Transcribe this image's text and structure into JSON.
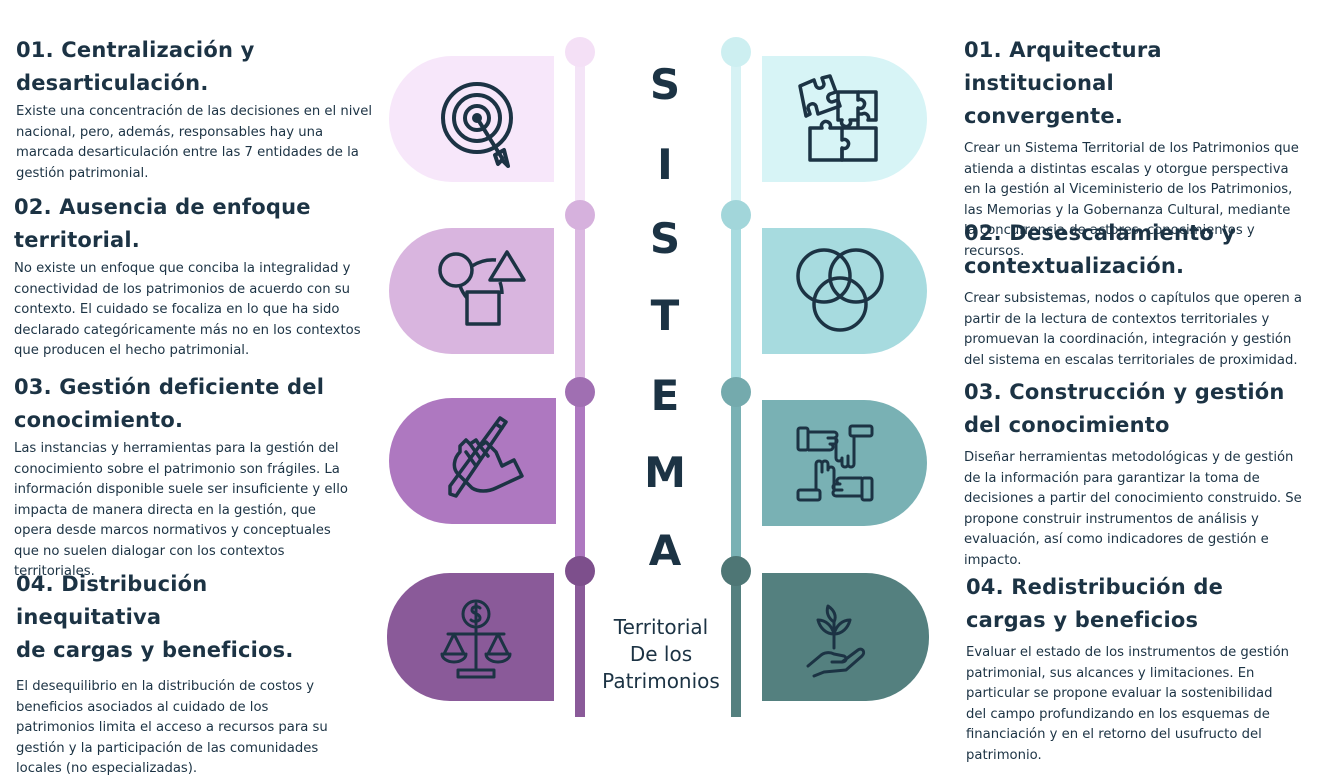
{
  "colors": {
    "text": "#1c3344",
    "left": [
      "#f7e7fa",
      "#d9b5df",
      "#ae78c0",
      "#8a5a99"
    ],
    "right": [
      "#d7f4f6",
      "#a7dbdf",
      "#79b1b4",
      "#54807f"
    ]
  },
  "center": {
    "letters": [
      "S",
      "I",
      "S",
      "T",
      "E",
      "M",
      "A"
    ],
    "subtitle": [
      "Territorial",
      "De los",
      "Patrimonios"
    ]
  },
  "left": [
    {
      "title_lines": [
        "01. Centralización y",
        "desarticulación."
      ],
      "text": "Existe una concentración de las decisiones en el nivel nacional, pero, además, responsables hay una marcada desarticulación entre las 7 entidades de la gestión patrimonial.",
      "icon": "target-icon"
    },
    {
      "title_lines": [
        "02. Ausencia de enfoque",
        "territorial."
      ],
      "text": "No existe un enfoque que conciba la integralidad y conectividad de los patrimonios de acuerdo con su contexto. El cuidado se focaliza en lo que ha sido declarado categóricamente más no en los contextos que producen el hecho patrimonial.",
      "icon": "shapes-icon"
    },
    {
      "title_lines": [
        "03. Gestión deficiente del",
        "conocimiento."
      ],
      "text": "Las instancias y herramientas para la gestión del conocimiento sobre el patrimonio son frágiles. La información disponible suele ser insuficiente y ello impacta de manera directa en la gestión, que opera desde marcos normativos y conceptuales que no suelen dialogar con los contextos territoriales.",
      "icon": "hand-pencil-icon"
    },
    {
      "title_lines": [
        "04. Distribución inequitativa",
        "de cargas y beneficios."
      ],
      "text": "El desequilibrio en la distribución de costos y beneficios asociados al cuidado de los patrimonios limita el acceso a recursos para su gestión y la participación de las comunidades locales (no especializadas).",
      "icon": "balance-scale-icon"
    }
  ],
  "right": [
    {
      "title_lines": [
        "01. Arquitectura institucional",
        "convergente."
      ],
      "text": "Crear un Sistema Territorial de los Patrimonios que atienda a distintas escalas y otorgue perspectiva en la gestión al Viceministerio de los Patrimonios, las Memorias y la Gobernanza Cultural, mediante la concurrencia de actores, conocimientos y recursos.",
      "icon": "puzzle-icon"
    },
    {
      "title_lines": [
        "02. Desescalamiento y",
        "contextualización."
      ],
      "text": "Crear subsistemas, nodos o capítulos que operen a partir de la lectura de contextos territoriales y promuevan la coordinación, integración y gestión del sistema en escalas territoriales de proximidad.",
      "icon": "venn-circles-icon"
    },
    {
      "title_lines": [
        "03. Construcción y gestión",
        "del conocimiento"
      ],
      "text": "Diseñar herramientas metodológicas y de gestión de la información para garantizar la toma de decisiones a partir del conocimiento construido. Se propone construir instrumentos de análisis y evaluación, así como indicadores de gestión e impacto.",
      "icon": "joined-hands-icon"
    },
    {
      "title_lines": [
        "04. Redistribución de",
        "cargas y beneficios"
      ],
      "text": "Evaluar el estado de los instrumentos de gestión patrimonial, sus alcances y limitaciones. En particular se propone evaluar la sostenibilidad del campo profundizando en los esquemas de financiación y en el retorno del usufructo del patrimonio.",
      "icon": "hand-plant-icon"
    }
  ]
}
